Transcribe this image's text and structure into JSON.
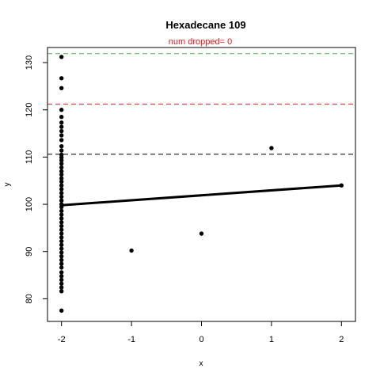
{
  "chart_data": {
    "type": "scatter",
    "title": "Hexadecane 109",
    "subtitle": "num dropped= 0",
    "xlabel": "x",
    "ylabel": "y",
    "xlim": [
      -2.2,
      2.2
    ],
    "ylim": [
      75.2,
      133.2
    ],
    "x_ticks": [
      -2,
      -1,
      0,
      1,
      2
    ],
    "y_ticks": [
      80,
      90,
      100,
      110,
      120,
      130
    ],
    "points": [
      {
        "x": -2,
        "y": 131.2
      },
      {
        "x": -2,
        "y": 126.7
      },
      {
        "x": -2,
        "y": 124.6
      },
      {
        "x": -2,
        "y": 120.0
      },
      {
        "x": -2,
        "y": 118.5
      },
      {
        "x": -2,
        "y": 117.3
      },
      {
        "x": -2,
        "y": 116.4
      },
      {
        "x": -2,
        "y": 115.5
      },
      {
        "x": -2,
        "y": 114.6
      },
      {
        "x": -2,
        "y": 113.6
      },
      {
        "x": -2,
        "y": 112.3
      },
      {
        "x": -2,
        "y": 111.4
      },
      {
        "x": -2,
        "y": 110.5
      },
      {
        "x": -2,
        "y": 109.9
      },
      {
        "x": -2,
        "y": 109.3
      },
      {
        "x": -2,
        "y": 108.6
      },
      {
        "x": -2,
        "y": 107.8
      },
      {
        "x": -2,
        "y": 107.0
      },
      {
        "x": -2,
        "y": 106.3
      },
      {
        "x": -2,
        "y": 105.5
      },
      {
        "x": -2,
        "y": 104.8
      },
      {
        "x": -2,
        "y": 104.0
      },
      {
        "x": -2,
        "y": 103.2
      },
      {
        "x": -2,
        "y": 102.4
      },
      {
        "x": -2,
        "y": 101.6
      },
      {
        "x": -2,
        "y": 100.8
      },
      {
        "x": -2,
        "y": 100.0
      },
      {
        "x": -2,
        "y": 99.4
      },
      {
        "x": -2,
        "y": 98.6
      },
      {
        "x": -2,
        "y": 97.8
      },
      {
        "x": -2,
        "y": 97.0
      },
      {
        "x": -2,
        "y": 96.2
      },
      {
        "x": -2,
        "y": 95.4
      },
      {
        "x": -2,
        "y": 94.6
      },
      {
        "x": -2,
        "y": 93.8
      },
      {
        "x": -2,
        "y": 93.0
      },
      {
        "x": -2,
        "y": 92.2
      },
      {
        "x": -2,
        "y": 91.4
      },
      {
        "x": -2,
        "y": 90.6
      },
      {
        "x": -2,
        "y": 89.8
      },
      {
        "x": -2,
        "y": 89.0
      },
      {
        "x": -2,
        "y": 88.2
      },
      {
        "x": -2,
        "y": 87.4
      },
      {
        "x": -2,
        "y": 86.6
      },
      {
        "x": -2,
        "y": 85.6
      },
      {
        "x": -2,
        "y": 84.8
      },
      {
        "x": -2,
        "y": 84.0
      },
      {
        "x": -2,
        "y": 83.2
      },
      {
        "x": -2,
        "y": 82.4
      },
      {
        "x": -2,
        "y": 81.6
      },
      {
        "x": -2,
        "y": 77.5
      },
      {
        "x": -1,
        "y": 90.2
      },
      {
        "x": 0,
        "y": 93.8
      },
      {
        "x": 1,
        "y": 111.9
      },
      {
        "x": 2,
        "y": 104.0
      }
    ],
    "fit_line": {
      "x": [
        -2,
        2
      ],
      "y": [
        99.8,
        104.0
      ],
      "color": "#000000"
    },
    "reference_lines": [
      {
        "y": 110.6,
        "color": "#000000",
        "style": "dashed"
      },
      {
        "y": 121.2,
        "color": "#e41a1c",
        "style": "dashed"
      },
      {
        "y": 131.9,
        "color": "#4daf4a",
        "style": "dashed"
      }
    ],
    "grid": false,
    "point_color": "#000000"
  }
}
